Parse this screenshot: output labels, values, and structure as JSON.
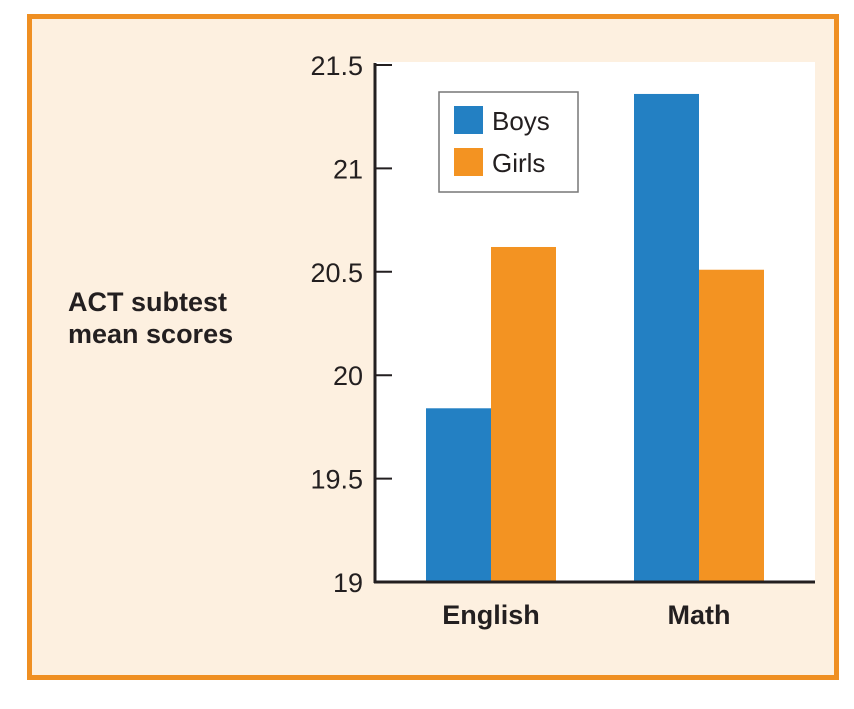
{
  "chart_data": {
    "type": "bar",
    "title": "",
    "xlabel": "",
    "ylabel": "ACT subtest mean scores",
    "categories": [
      "English",
      "Math"
    ],
    "series": [
      {
        "name": "Boys",
        "color": "#2380c3",
        "values": [
          19.84,
          21.36
        ]
      },
      {
        "name": "Girls",
        "color": "#f39322",
        "values": [
          20.62,
          20.51
        ]
      }
    ],
    "ylim": [
      19,
      21.5
    ],
    "yticks": [
      "19",
      "19.5",
      "20",
      "20.5",
      "21",
      "21.5"
    ],
    "legend_position": "top-left",
    "grid": false
  }
}
